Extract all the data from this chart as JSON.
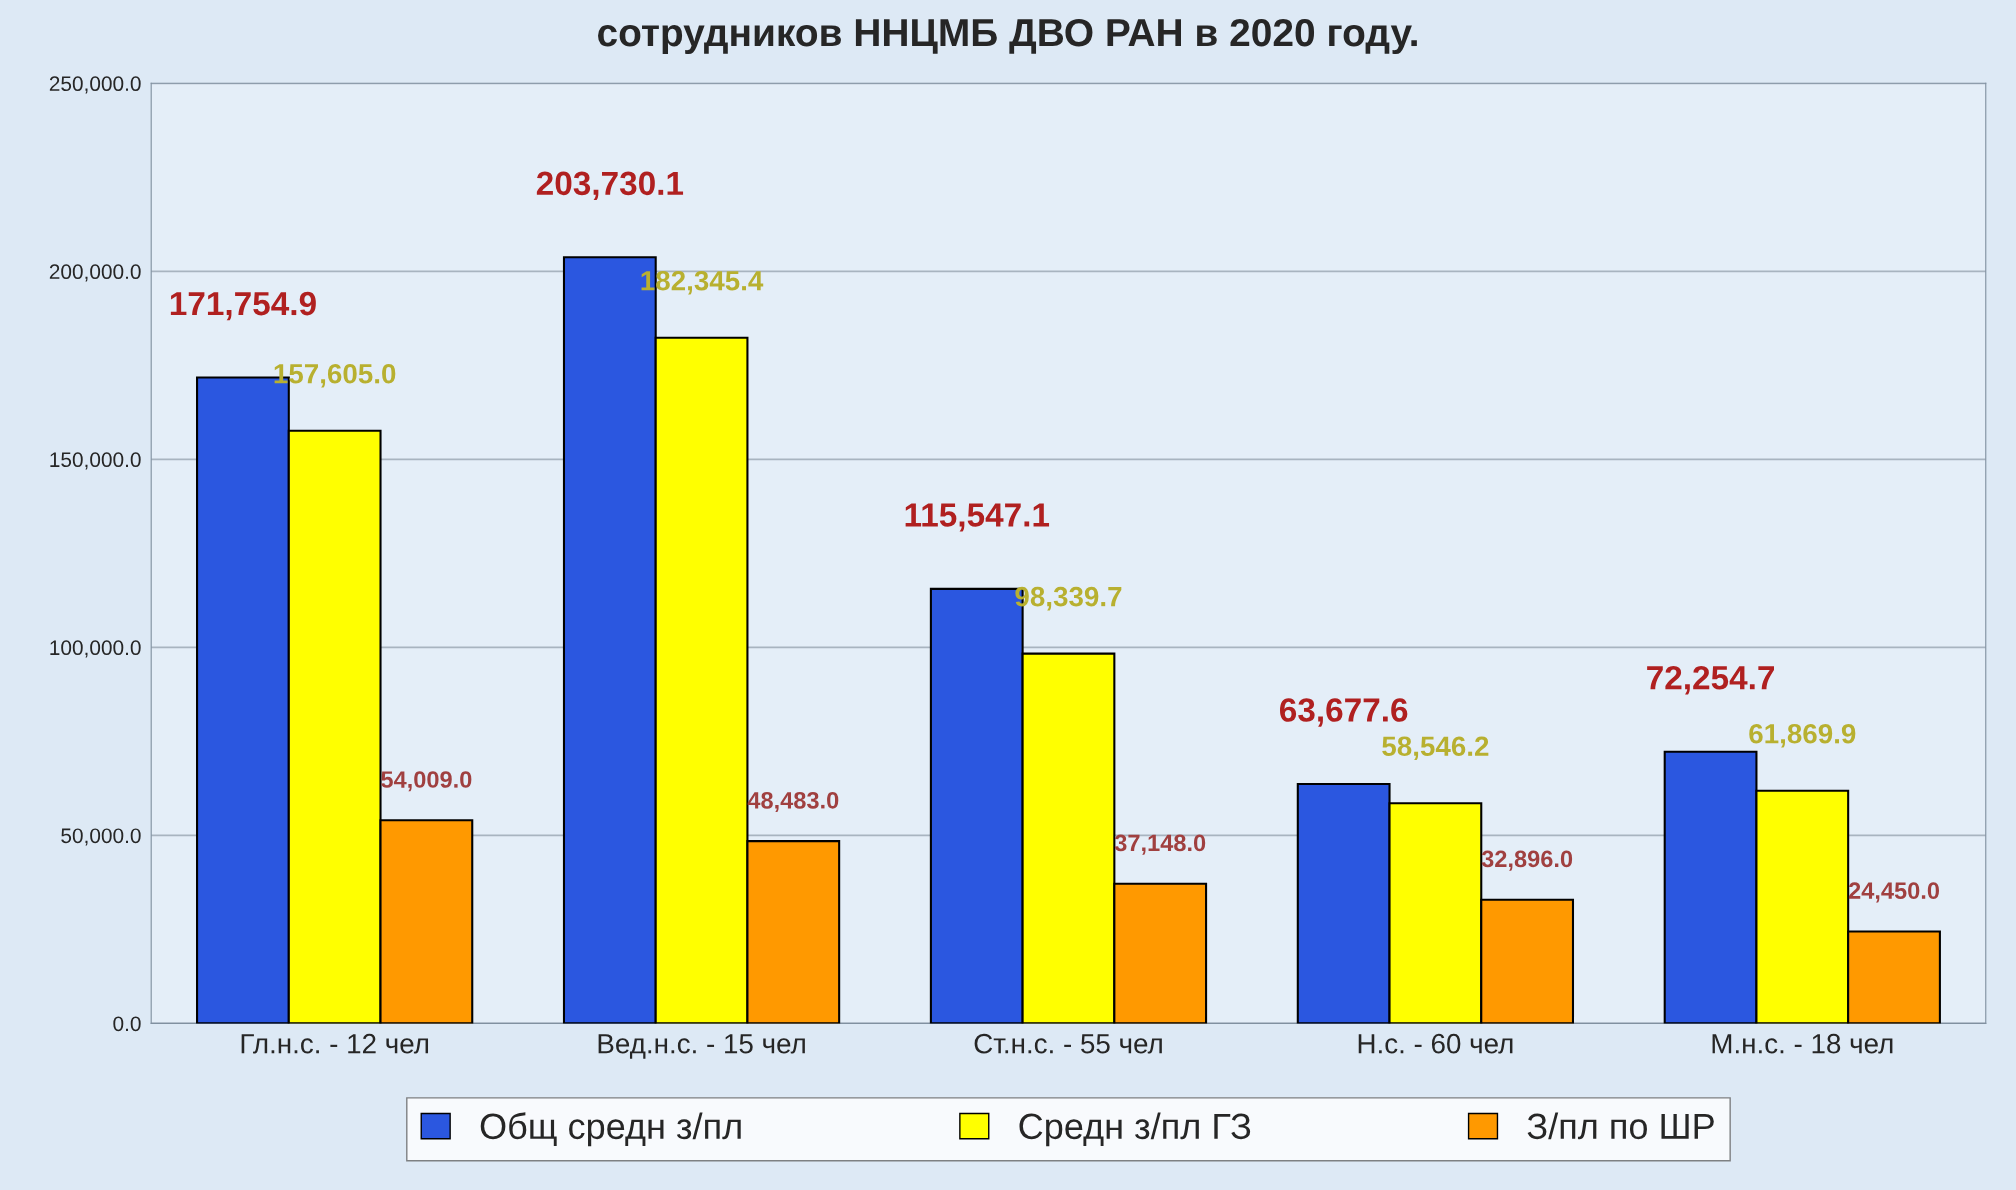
{
  "chart_data": {
    "type": "bar",
    "title": "сотрудников ННЦМБ ДВО РАН в 2020 году.",
    "categories": [
      "Гл.н.с. - 12 чел",
      "Вед.н.с. - 15 чел",
      "Ст.н.с. - 55 чел",
      "Н.с. - 60 чел",
      "М.н.с. - 18 чел"
    ],
    "series": [
      {
        "name": "Общ средн з/пл",
        "color": "#2b57e0",
        "values": [
          171754.9,
          203730.1,
          115547.1,
          63677.6,
          72254.7
        ],
        "value_labels": [
          "171,754.9",
          "203,730.1",
          "115,547.1",
          "63,677.6",
          "72,254.7"
        ]
      },
      {
        "name": "Средн з/пл ГЗ",
        "color": "#ffff00",
        "values": [
          157605.0,
          182345.4,
          98339.7,
          58546.2,
          61869.9
        ],
        "value_labels": [
          "157,605.0",
          "182,345.4",
          "98,339.7",
          "58,546.2",
          "61,869.9"
        ]
      },
      {
        "name": "З/пл по ШР",
        "color": "#ff9900",
        "values": [
          54009.0,
          48483.0,
          37148.0,
          32896.0,
          24450.0
        ],
        "value_labels": [
          "54,009.0",
          "48,483.0",
          "37,148.0",
          "32,896.0",
          "24,450.0"
        ]
      }
    ],
    "ylim": [
      0,
      250000
    ],
    "yticks": [
      {
        "value": 0,
        "label": "0.0"
      },
      {
        "value": 50000,
        "label": "50,000.0"
      },
      {
        "value": 100000,
        "label": "100,000.0"
      },
      {
        "value": 150000,
        "label": "150,000.0"
      },
      {
        "value": 200000,
        "label": "200,000.0"
      },
      {
        "value": 250000,
        "label": "250,000.0"
      }
    ],
    "grid": "y",
    "legend": "bottom"
  }
}
